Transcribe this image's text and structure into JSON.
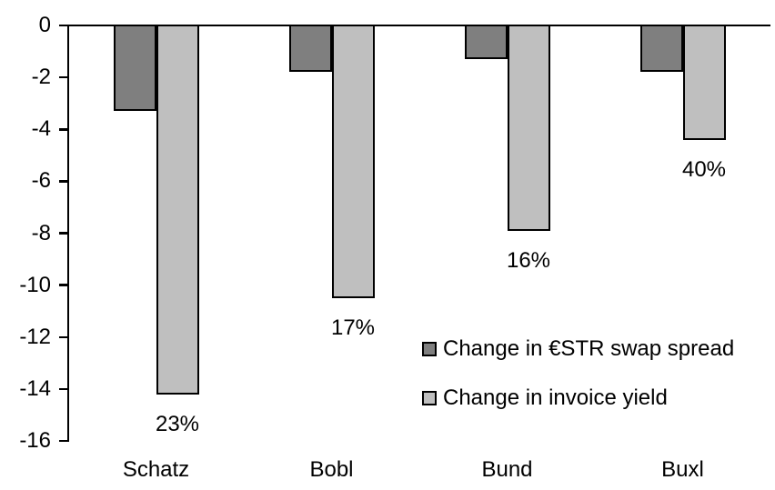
{
  "chart_data": {
    "type": "bar",
    "title": "",
    "xlabel": "",
    "ylabel": "",
    "categories": [
      "Schatz",
      "Bobl",
      "Bund",
      "Buxl"
    ],
    "series": [
      {
        "name": "Change in €STR swap spread",
        "color": "#7f7f7f",
        "values": [
          -3.3,
          -1.8,
          -1.3,
          -1.8
        ]
      },
      {
        "name": "Change in invoice yield",
        "color": "#bfbfbf",
        "values": [
          -14.2,
          -10.5,
          -7.9,
          -4.4
        ],
        "data_labels": [
          "23%",
          "17%",
          "16%",
          "40%"
        ]
      }
    ],
    "ylim": [
      -16,
      0
    ],
    "yticks": [
      0,
      -2,
      -4,
      -6,
      -8,
      -10,
      -12,
      -14,
      -16
    ],
    "ytick_labels": [
      "0",
      "-2",
      "-4",
      "-6",
      "-8",
      "-10",
      "-12",
      "-14",
      "-16"
    ],
    "grid": false,
    "legend_position": "inside-center-right",
    "bar_border_color": "#000000",
    "axis_color": "#000000",
    "background": "#ffffff"
  },
  "legend": {
    "items": [
      {
        "label": "Change in €STR swap spread",
        "color": "#7f7f7f"
      },
      {
        "label": "Change in invoice yield",
        "color": "#bfbfbf"
      }
    ]
  }
}
